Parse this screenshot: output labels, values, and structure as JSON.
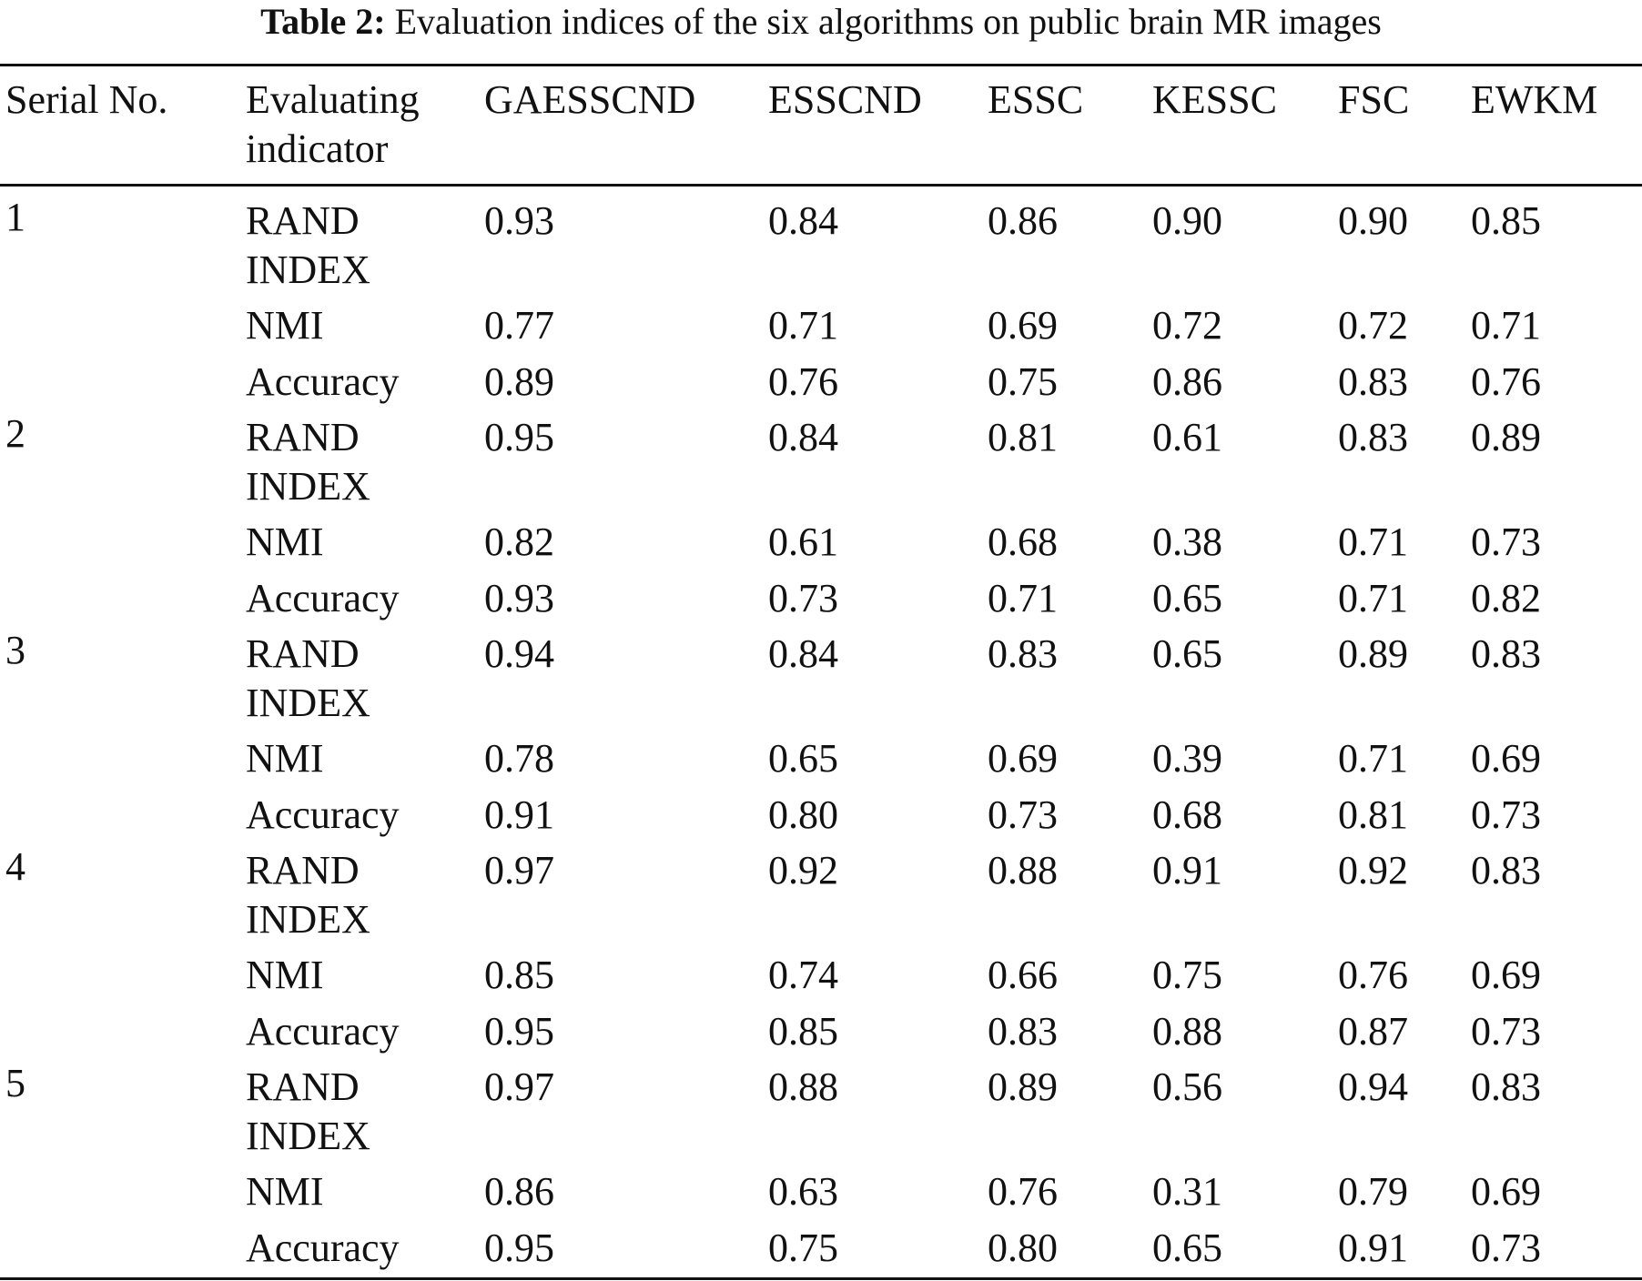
{
  "caption": {
    "label": "Table 2:",
    "text": "Evaluation indices of the six algorithms on public brain MR images"
  },
  "headers": {
    "serial": "Serial No.",
    "indicator_line1": "Evaluating",
    "indicator_line2": "indicator",
    "algorithms": [
      "GAESSCND",
      "ESSCND",
      "ESSC",
      "KESSC",
      "FSC",
      "EWKM"
    ]
  },
  "groups": [
    {
      "serial": "1",
      "rows": [
        {
          "indicator": "RAND INDEX",
          "values": [
            "0.93",
            "0.84",
            "0.86",
            "0.90",
            "0.90",
            "0.85"
          ]
        },
        {
          "indicator": "NMI",
          "values": [
            "0.77",
            "0.71",
            "0.69",
            "0.72",
            "0.72",
            "0.71"
          ]
        },
        {
          "indicator": "Accuracy",
          "values": [
            "0.89",
            "0.76",
            "0.75",
            "0.86",
            "0.83",
            "0.76"
          ]
        }
      ]
    },
    {
      "serial": "2",
      "rows": [
        {
          "indicator": "RAND INDEX",
          "values": [
            "0.95",
            "0.84",
            "0.81",
            "0.61",
            "0.83",
            "0.89"
          ]
        },
        {
          "indicator": "NMI",
          "values": [
            "0.82",
            "0.61",
            "0.68",
            "0.38",
            "0.71",
            "0.73"
          ]
        },
        {
          "indicator": "Accuracy",
          "values": [
            "0.93",
            "0.73",
            "0.71",
            "0.65",
            "0.71",
            "0.82"
          ]
        }
      ]
    },
    {
      "serial": "3",
      "rows": [
        {
          "indicator": "RAND INDEX",
          "values": [
            "0.94",
            "0.84",
            "0.83",
            "0.65",
            "0.89",
            "0.83"
          ]
        },
        {
          "indicator": "NMI",
          "values": [
            "0.78",
            "0.65",
            "0.69",
            "0.39",
            "0.71",
            "0.69"
          ]
        },
        {
          "indicator": "Accuracy",
          "values": [
            "0.91",
            "0.80",
            "0.73",
            "0.68",
            "0.81",
            "0.73"
          ]
        }
      ]
    },
    {
      "serial": "4",
      "rows": [
        {
          "indicator": "RAND INDEX",
          "values": [
            "0.97",
            "0.92",
            "0.88",
            "0.91",
            "0.92",
            "0.83"
          ]
        },
        {
          "indicator": "NMI",
          "values": [
            "0.85",
            "0.74",
            "0.66",
            "0.75",
            "0.76",
            "0.69"
          ]
        },
        {
          "indicator": "Accuracy",
          "values": [
            "0.95",
            "0.85",
            "0.83",
            "0.88",
            "0.87",
            "0.73"
          ]
        }
      ]
    },
    {
      "serial": "5",
      "rows": [
        {
          "indicator": "RAND INDEX",
          "values": [
            "0.97",
            "0.88",
            "0.89",
            "0.56",
            "0.94",
            "0.83"
          ]
        },
        {
          "indicator": "NMI",
          "values": [
            "0.86",
            "0.63",
            "0.76",
            "0.31",
            "0.79",
            "0.69"
          ]
        },
        {
          "indicator": "Accuracy",
          "values": [
            "0.95",
            "0.75",
            "0.80",
            "0.65",
            "0.91",
            "0.73"
          ]
        }
      ]
    }
  ]
}
